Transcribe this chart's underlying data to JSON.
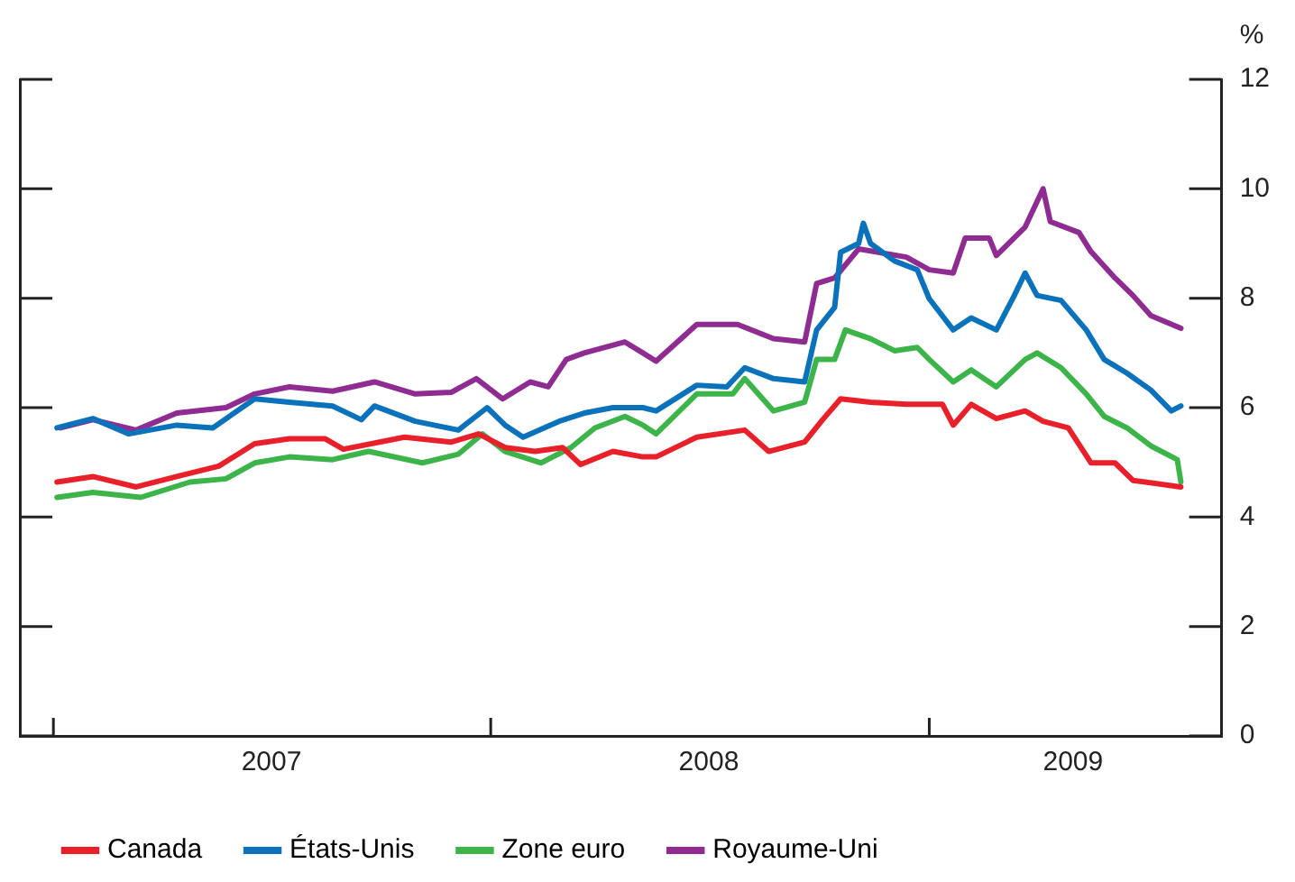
{
  "chart_data": {
    "type": "line",
    "ylabel": "%",
    "xlim": [
      "2006-12-04",
      "2009-09-02"
    ],
    "xticks": [
      {
        "value": "2007-01-01",
        "label": null
      },
      {
        "value": "2007-07-02",
        "label": "2007"
      },
      {
        "value": "2008-01-01",
        "label": null
      },
      {
        "value": "2008-07-01",
        "label": "2008"
      },
      {
        "value": "2009-01-01",
        "label": null
      },
      {
        "value": "2009-05-01",
        "label": "2009"
      }
    ],
    "ylim": [
      0,
      12
    ],
    "yticks": [
      0,
      2,
      4,
      6,
      8,
      10,
      12
    ],
    "grid": false,
    "legend": "bottom",
    "marker": "none",
    "line_style": "solid",
    "series": [
      {
        "name": "Canada",
        "color": "#e8202a",
        "x": [
          "2007-01-04",
          "2007-02-03",
          "2007-03-11",
          "2007-04-14",
          "2007-05-19",
          "2007-06-18",
          "2007-07-17",
          "2007-08-16",
          "2007-08-31",
          "2007-10-21",
          "2007-11-29",
          "2007-12-22",
          "2008-01-13",
          "2008-02-07",
          "2008-03-01",
          "2008-03-16",
          "2008-04-12",
          "2008-05-07",
          "2008-05-18",
          "2008-06-21",
          "2008-07-31",
          "2008-08-20",
          "2008-09-19",
          "2008-10-04",
          "2008-10-19",
          "2008-11-13",
          "2008-12-13",
          "2009-01-12",
          "2009-01-21",
          "2009-02-05",
          "2009-02-26",
          "2009-03-22",
          "2009-04-06",
          "2009-04-27",
          "2009-05-16",
          "2009-06-05",
          "2009-06-20",
          "2009-07-30"
        ],
        "values": [
          4.64,
          4.74,
          4.55,
          4.74,
          4.93,
          5.34,
          5.43,
          5.43,
          5.24,
          5.46,
          5.37,
          5.52,
          5.27,
          5.2,
          5.27,
          4.96,
          5.2,
          5.1,
          5.1,
          5.46,
          5.59,
          5.2,
          5.37,
          5.78,
          6.16,
          6.1,
          6.06,
          6.06,
          5.68,
          6.06,
          5.8,
          5.94,
          5.75,
          5.63,
          4.99,
          4.99,
          4.67,
          4.55
        ]
      },
      {
        "name": "États-Unis",
        "color": "#0a72ba",
        "x": [
          "2007-01-04",
          "2007-02-03",
          "2007-03-05",
          "2007-04-14",
          "2007-05-14",
          "2007-06-18",
          "2007-07-17",
          "2007-08-22",
          "2007-09-15",
          "2007-09-26",
          "2007-10-30",
          "2007-12-05",
          "2007-12-29",
          "2008-01-13",
          "2008-01-28",
          "2008-02-27",
          "2008-03-19",
          "2008-04-12",
          "2008-05-07",
          "2008-05-18",
          "2008-06-21",
          "2008-07-16",
          "2008-07-31",
          "2008-08-24",
          "2008-09-19",
          "2008-09-29",
          "2008-10-14",
          "2008-10-19",
          "2008-11-03",
          "2008-11-07",
          "2008-11-13",
          "2008-12-03",
          "2008-12-22",
          "2009-01-01",
          "2009-01-21",
          "2009-02-05",
          "2009-02-26",
          "2009-03-13",
          "2009-03-22",
          "2009-04-01",
          "2009-04-21",
          "2009-05-12",
          "2009-05-27",
          "2009-06-15",
          "2009-07-05",
          "2009-07-22",
          "2009-07-30"
        ],
        "values": [
          5.63,
          5.8,
          5.52,
          5.68,
          5.63,
          6.16,
          6.1,
          6.03,
          5.78,
          6.03,
          5.75,
          5.59,
          6.0,
          5.68,
          5.46,
          5.75,
          5.9,
          6.0,
          6.0,
          5.94,
          6.41,
          6.38,
          6.73,
          6.53,
          6.47,
          7.42,
          7.83,
          8.84,
          9.0,
          9.37,
          9.0,
          8.68,
          8.52,
          7.99,
          7.42,
          7.64,
          7.42,
          8.05,
          8.46,
          8.05,
          7.96,
          7.42,
          6.88,
          6.63,
          6.32,
          5.94,
          6.03
        ]
      },
      {
        "name": "Zone euro",
        "color": "#3cb44a",
        "x": [
          "2007-01-04",
          "2007-02-03",
          "2007-03-15",
          "2007-04-25",
          "2007-05-25",
          "2007-06-18",
          "2007-07-17",
          "2007-08-22",
          "2007-09-21",
          "2007-11-05",
          "2007-12-05",
          "2007-12-25",
          "2008-01-13",
          "2008-02-12",
          "2008-03-08",
          "2008-03-28",
          "2008-04-22",
          "2008-05-07",
          "2008-05-18",
          "2008-06-21",
          "2008-07-21",
          "2008-07-31",
          "2008-08-24",
          "2008-09-19",
          "2008-09-29",
          "2008-10-14",
          "2008-10-23",
          "2008-11-13",
          "2008-12-03",
          "2008-12-22",
          "2009-01-01",
          "2009-01-21",
          "2009-02-05",
          "2009-02-26",
          "2009-03-22",
          "2009-04-01",
          "2009-04-21",
          "2009-05-12",
          "2009-05-27",
          "2009-06-15",
          "2009-07-05",
          "2009-07-27",
          "2009-07-30"
        ],
        "values": [
          4.36,
          4.45,
          4.36,
          4.64,
          4.7,
          4.99,
          5.1,
          5.05,
          5.2,
          4.99,
          5.15,
          5.52,
          5.2,
          4.99,
          5.27,
          5.63,
          5.84,
          5.68,
          5.52,
          6.25,
          6.25,
          6.53,
          5.94,
          6.1,
          6.88,
          6.88,
          7.42,
          7.26,
          7.04,
          7.1,
          6.88,
          6.47,
          6.69,
          6.38,
          6.88,
          7.0,
          6.73,
          6.25,
          5.84,
          5.63,
          5.3,
          5.05,
          4.64
        ]
      },
      {
        "name": "Royaume-Uni",
        "color": "#8e2c91",
        "x": [
          "2007-01-07",
          "2007-02-03",
          "2007-03-11",
          "2007-04-14",
          "2007-05-25",
          "2007-06-18",
          "2007-07-17",
          "2007-08-22",
          "2007-09-26",
          "2007-10-30",
          "2007-11-29",
          "2007-12-20",
          "2008-01-11",
          "2008-02-03",
          "2008-02-18",
          "2008-03-04",
          "2008-03-19",
          "2008-04-22",
          "2008-05-07",
          "2008-05-18",
          "2008-06-21",
          "2008-07-25",
          "2008-08-24",
          "2008-09-19",
          "2008-09-29",
          "2008-10-14",
          "2008-11-03",
          "2008-12-13",
          "2009-01-01",
          "2009-01-21",
          "2009-01-31",
          "2009-02-20",
          "2009-02-26",
          "2009-03-22",
          "2009-04-06",
          "2009-04-12",
          "2009-05-06",
          "2009-05-16",
          "2009-06-05",
          "2009-06-20",
          "2009-07-05",
          "2009-07-30"
        ],
        "values": [
          5.63,
          5.78,
          5.59,
          5.9,
          6.0,
          6.25,
          6.38,
          6.3,
          6.47,
          6.25,
          6.28,
          6.53,
          6.16,
          6.47,
          6.38,
          6.88,
          7.0,
          7.2,
          7.0,
          6.85,
          7.52,
          7.52,
          7.26,
          7.2,
          8.27,
          8.37,
          8.9,
          8.75,
          8.52,
          8.46,
          9.1,
          9.1,
          8.78,
          9.3,
          10.0,
          9.4,
          9.2,
          8.85,
          8.37,
          8.05,
          7.68,
          7.45
        ]
      }
    ]
  }
}
